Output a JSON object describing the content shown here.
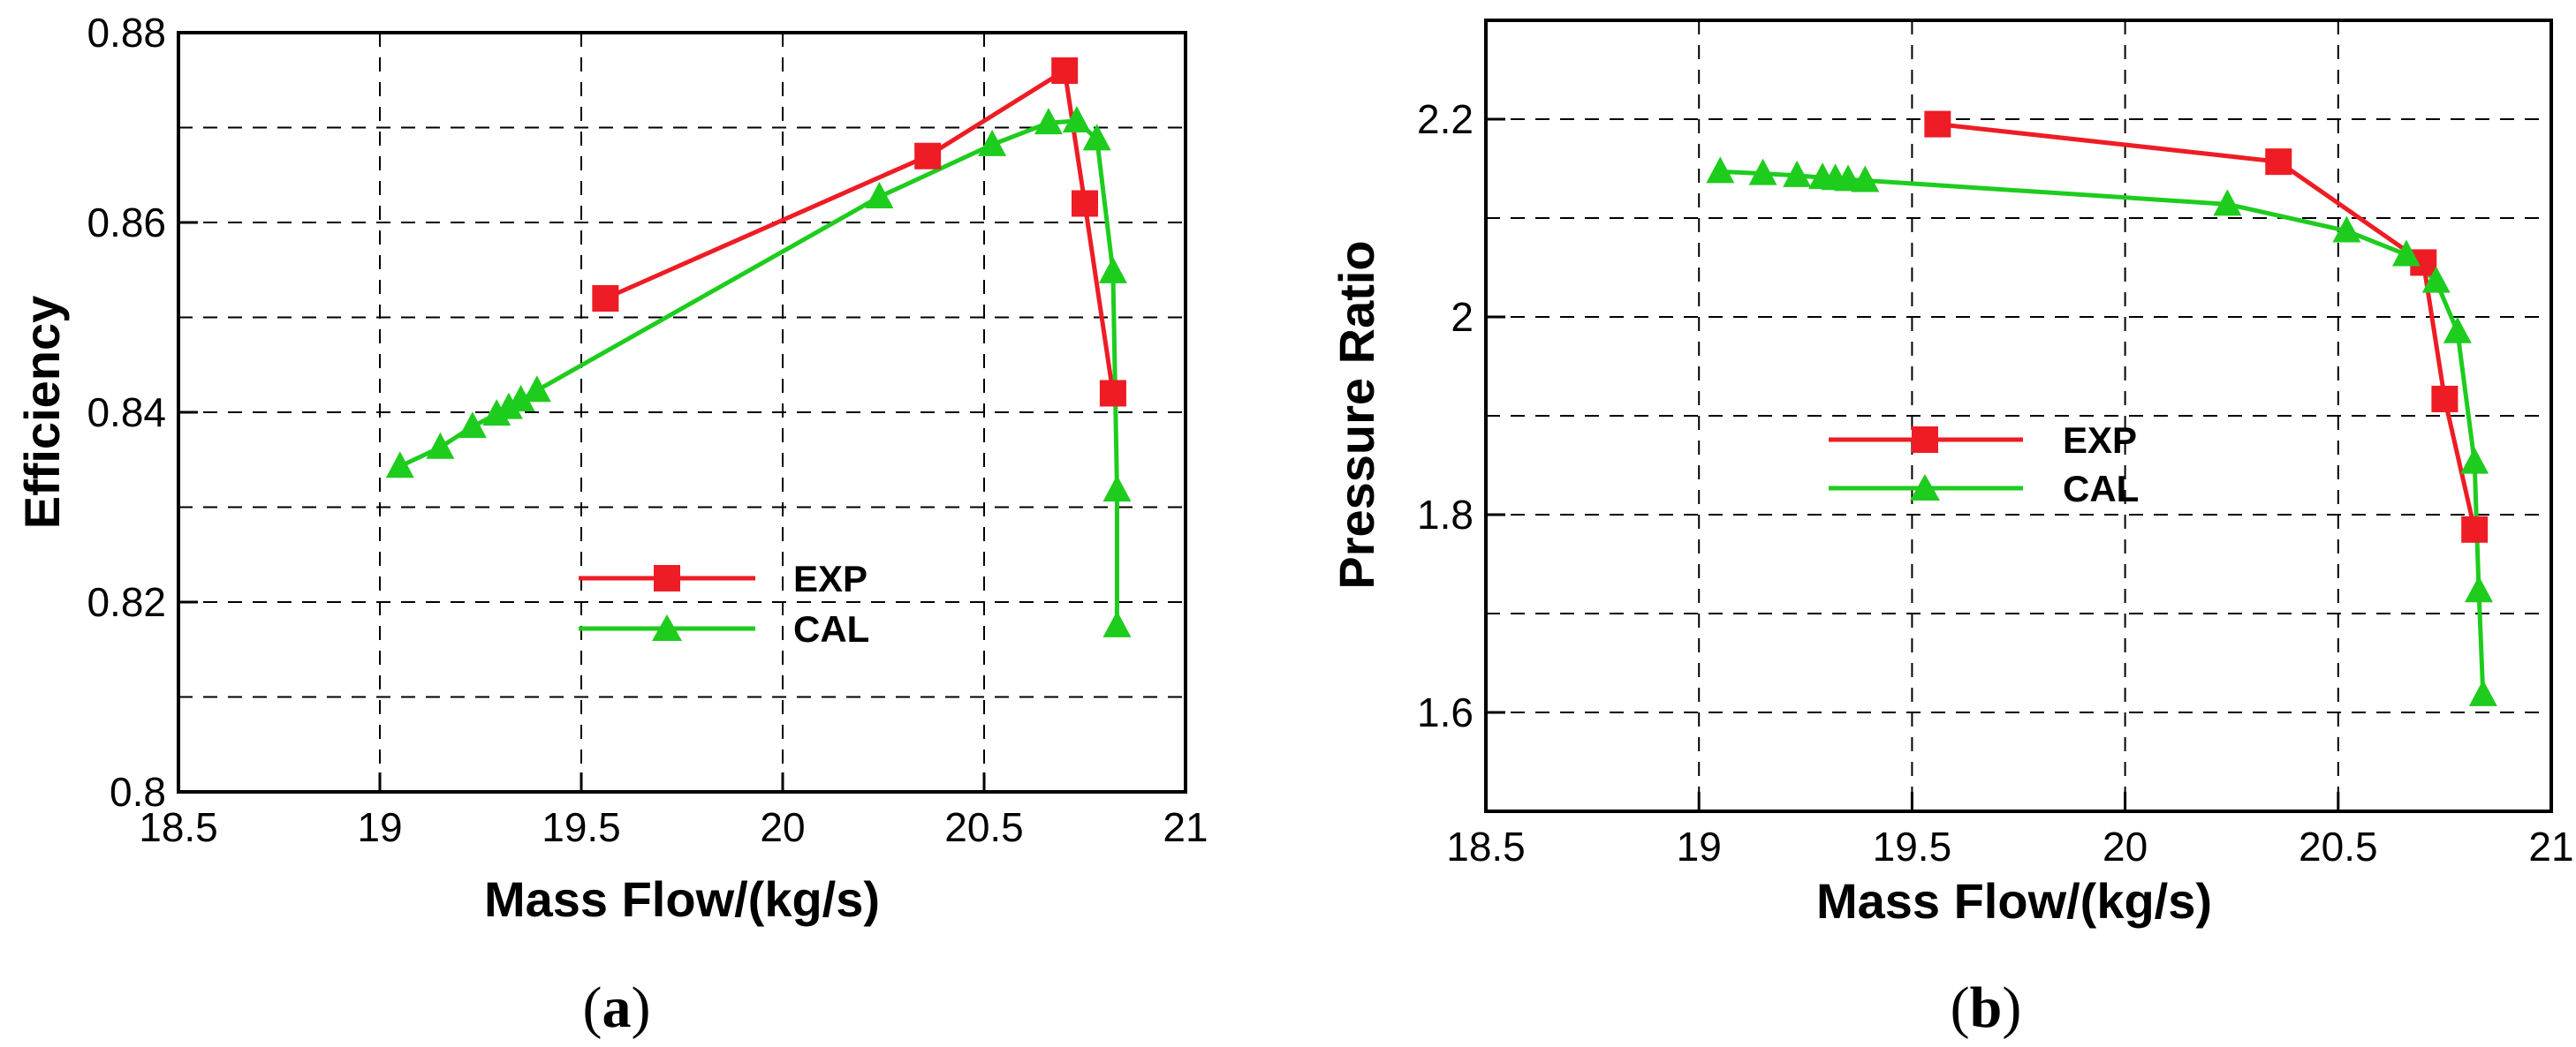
{
  "chart_data": [
    {
      "type": "line",
      "panel_label": {
        "open": "(",
        "letter": "a",
        "close": ")"
      },
      "xlabel": "Mass Flow/(kg/s)",
      "ylabel": "Efficiency",
      "xlim": [
        18.5,
        21
      ],
      "ylim": [
        0.8,
        0.88
      ],
      "xticks": [
        18.5,
        19,
        19.5,
        20,
        20.5,
        21
      ],
      "xtick_labels": [
        "18.5",
        "19",
        "19.5",
        "20",
        "20.5",
        "21"
      ],
      "yticks": [
        0.8,
        0.82,
        0.84,
        0.86,
        0.88
      ],
      "ytick_labels": [
        "0.8",
        "0.82",
        "0.84",
        "0.86",
        "0.88"
      ],
      "grid": true,
      "legend_position": "center-right",
      "series": [
        {
          "name": "EXP",
          "color": "#ee1c24",
          "marker": "square",
          "x": [
            19.56,
            20.36,
            20.7,
            20.75,
            20.82
          ],
          "y": [
            0.852,
            0.867,
            0.876,
            0.862,
            0.842
          ]
        },
        {
          "name": "CAL",
          "color": "#1ecc1e",
          "marker": "triangle",
          "x": [
            19.05,
            19.15,
            19.23,
            19.29,
            19.32,
            19.35,
            19.39,
            20.24,
            20.52,
            20.66,
            20.73,
            20.78,
            20.82,
            20.83,
            20.83
          ],
          "y": [
            0.8343,
            0.8363,
            0.8385,
            0.8398,
            0.8405,
            0.8413,
            0.8423,
            0.8627,
            0.8682,
            0.8705,
            0.8707,
            0.8688,
            0.8548,
            0.8318,
            0.8175
          ]
        }
      ]
    },
    {
      "type": "line",
      "panel_label": {
        "open": "(",
        "letter": "b",
        "close": ")"
      },
      "xlabel": "Mass Flow/(kg/s)",
      "ylabel": "Pressure Ratio",
      "xlim": [
        18.5,
        21
      ],
      "ylim": [
        1.5,
        2.3
      ],
      "xticks": [
        18.5,
        19,
        19.5,
        20,
        20.5,
        21
      ],
      "xtick_labels": [
        "18.5",
        "19",
        "19.5",
        "20",
        "20.5",
        "21"
      ],
      "yticks": [
        1.6,
        1.8,
        2.0,
        2.2
      ],
      "ytick_labels": [
        "1.6",
        "1.8",
        "2",
        "2.2"
      ],
      "grid": true,
      "legend_position": "center",
      "series": [
        {
          "name": "EXP",
          "color": "#ee1c24",
          "marker": "square",
          "x": [
            19.56,
            20.36,
            20.7,
            20.75,
            20.82
          ],
          "y": [
            2.195,
            2.157,
            2.055,
            1.917,
            1.785
          ]
        },
        {
          "name": "CAL",
          "color": "#1ecc1e",
          "marker": "triangle",
          "x": [
            19.05,
            19.15,
            19.23,
            19.29,
            19.32,
            19.35,
            19.39,
            20.24,
            20.52,
            20.66,
            20.73,
            20.78,
            20.82,
            20.83,
            20.84
          ],
          "y": [
            2.147,
            2.145,
            2.143,
            2.141,
            2.14,
            2.139,
            2.138,
            2.114,
            2.087,
            2.063,
            2.036,
            1.985,
            1.853,
            1.723,
            1.618
          ]
        }
      ]
    }
  ]
}
